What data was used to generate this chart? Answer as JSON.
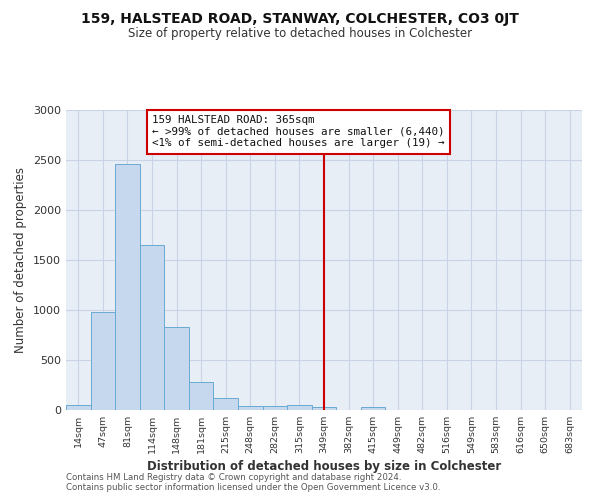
{
  "title": "159, HALSTEAD ROAD, STANWAY, COLCHESTER, CO3 0JT",
  "subtitle": "Size of property relative to detached houses in Colchester",
  "xlabel": "Distribution of detached houses by size in Colchester",
  "ylabel": "Number of detached properties",
  "bar_labels": [
    "14sqm",
    "47sqm",
    "81sqm",
    "114sqm",
    "148sqm",
    "181sqm",
    "215sqm",
    "248sqm",
    "282sqm",
    "315sqm",
    "349sqm",
    "382sqm",
    "415sqm",
    "449sqm",
    "482sqm",
    "516sqm",
    "549sqm",
    "583sqm",
    "616sqm",
    "650sqm",
    "683sqm"
  ],
  "bar_values": [
    50,
    985,
    2460,
    1650,
    830,
    280,
    120,
    45,
    45,
    55,
    30,
    0,
    30,
    0,
    0,
    0,
    0,
    0,
    0,
    0,
    0
  ],
  "bar_color": "#c5d8ee",
  "bar_edge_color": "#6aaad4",
  "grid_color": "#c8d4e6",
  "background_color": "#e8eef6",
  "vline_x_index": 10.0,
  "vline_color": "#cc0000",
  "annotation_title": "159 HALSTEAD ROAD: 365sqm",
  "annotation_line1": "← >99% of detached houses are smaller (6,440)",
  "annotation_line2": "<1% of semi-detached houses are larger (19) →",
  "annotation_box_color": "#cc0000",
  "footer1": "Contains HM Land Registry data © Crown copyright and database right 2024.",
  "footer2": "Contains public sector information licensed under the Open Government Licence v3.0.",
  "ylim": [
    0,
    3000
  ],
  "yticks": [
    0,
    500,
    1000,
    1500,
    2000,
    2500,
    3000
  ]
}
